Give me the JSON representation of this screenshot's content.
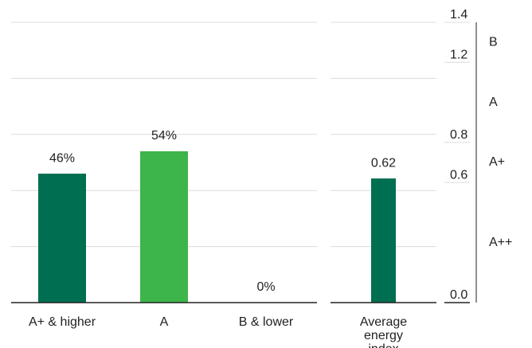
{
  "chart_data": [
    {
      "type": "bar",
      "categories": [
        "A+ & higher",
        "A",
        "B & lower"
      ],
      "values": [
        46,
        54,
        0
      ],
      "value_labels": [
        "46%",
        "54%",
        "0%"
      ],
      "colors": [
        "#006e50",
        "#3db54a",
        "#3db54a"
      ],
      "ylim": [
        0,
        100
      ],
      "yticks": [
        0,
        20,
        40,
        60,
        80,
        100
      ],
      "grid": true
    },
    {
      "type": "bar",
      "categories": [
        "Average energy index"
      ],
      "values": [
        0.62
      ],
      "colors": [
        "#006e50"
      ],
      "ylim": [
        0,
        1.4
      ],
      "yticks": [
        {
          "value": 0,
          "label": "0.0"
        },
        0.6,
        0.8,
        1.2,
        1.4
      ],
      "bands": [
        {
          "label": "B",
          "range": [
            1.2,
            1.4
          ]
        },
        {
          "label": "A",
          "range": [
            0.8,
            1.2
          ]
        },
        {
          "label": "A+",
          "range": [
            0.6,
            0.8
          ]
        },
        {
          "label": "A++",
          "range": [
            0,
            0.6
          ]
        }
      ],
      "grid": true
    }
  ]
}
